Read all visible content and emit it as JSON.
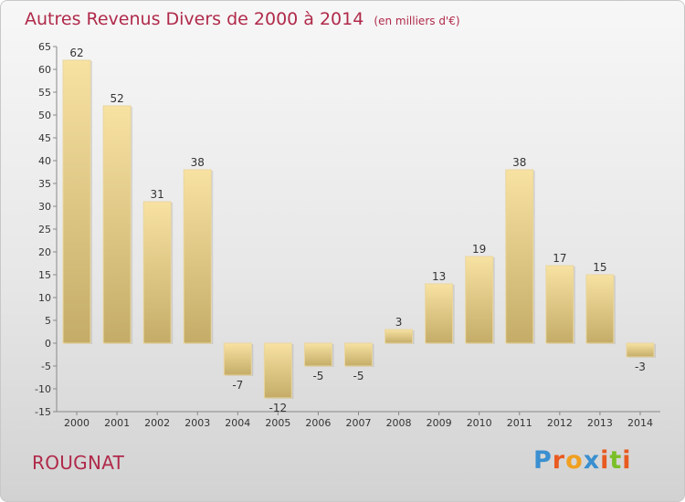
{
  "header": {
    "title": "Autres Revenus Divers de 2000 à 2014",
    "unit": "(en milliers d'€)"
  },
  "footer": {
    "commune": "ROUGNAT",
    "brand": "Proxiti"
  },
  "colors": {
    "title": "#b02a4a",
    "bar_light": "#f8e2a2",
    "bar_dark": "#c4ac68",
    "brand_letters": [
      "#3a8fd0",
      "#e85a20",
      "#f0a020",
      "#3a8fd0",
      "#e85a20",
      "#7abf28",
      "#e85a20"
    ]
  },
  "chart_data": {
    "type": "bar",
    "categories": [
      "2000",
      "2001",
      "2002",
      "2003",
      "2004",
      "2005",
      "2006",
      "2007",
      "2008",
      "2009",
      "2010",
      "2011",
      "2012",
      "2013",
      "2014"
    ],
    "values": [
      62,
      52,
      31,
      38,
      -7,
      -12,
      -5,
      -5,
      3,
      13,
      19,
      38,
      17,
      15,
      -3
    ],
    "ylim": [
      -15,
      65
    ],
    "yticks": [
      -15,
      -10,
      -5,
      0,
      5,
      10,
      15,
      20,
      25,
      30,
      35,
      40,
      45,
      50,
      55,
      60,
      65
    ],
    "xlabel": "",
    "ylabel": "",
    "grid": false
  }
}
